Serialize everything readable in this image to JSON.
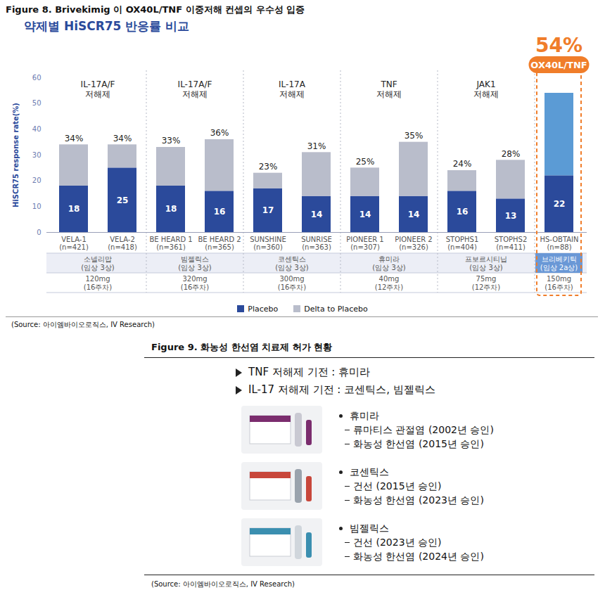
{
  "chart_data": {
    "type": "bar",
    "stacked": true,
    "title": "Figure 8. Brivekimig 이 OX40L/TNF 이중저해 컨셉의 우수성 입증",
    "subtitle": "약제별 HiSCR75 반응률 비교",
    "y_label": "HiSCR75 response rate(%)",
    "categories": [
      "VELA-1",
      "VELA-2",
      "BE HEARD 1",
      "BE HEARD 2",
      "SUNSHINE",
      "SUNRISE",
      "PIONEER 1",
      "PIONEER 2",
      "STOPHS1",
      "STOPHS2",
      "HS-OBTAIN"
    ],
    "sample_sizes": [
      "(n=421)",
      "(n=418)",
      "(n=361)",
      "(n=365)",
      "(n=360)",
      "(n=363)",
      "(n=307)",
      "(n=326)",
      "(n=404)",
      "(n=411)",
      "(n=88)"
    ],
    "ylim": [
      0,
      60
    ],
    "yticks": [
      0,
      10,
      20,
      30,
      40,
      50,
      60
    ],
    "series": [
      {
        "name": "Placebo",
        "color": "#2b4a9b",
        "data_labels": true,
        "values": [
          18,
          25,
          18,
          16,
          17,
          14,
          14,
          14,
          16,
          13,
          22
        ]
      },
      {
        "name": "Delta to Placebo",
        "color": "#b9bdcb",
        "colors": [
          "#b9bdcb",
          "#b9bdcb",
          "#b9bdcb",
          "#b9bdcb",
          "#b9bdcb",
          "#b9bdcb",
          "#b9bdcb",
          "#b9bdcb",
          "#b9bdcb",
          "#b9bdcb",
          "#5b9bd5"
        ],
        "values": [
          16,
          9,
          15,
          20,
          6,
          17,
          11,
          21,
          8,
          15,
          32
        ]
      }
    ],
    "totals": {
      "values": [
        34,
        34,
        33,
        36,
        23,
        31,
        25,
        35,
        24,
        28,
        54
      ],
      "value_labels": [
        "34%",
        "34%",
        "33%",
        "36%",
        "23%",
        "31%",
        "25%",
        "35%",
        "24%",
        "28%",
        "54%"
      ]
    },
    "groups": [
      {
        "label": "IL-17A/F 저해제",
        "categories": [
          "VELA-1",
          "VELA-2"
        ],
        "drug": "소넬리맙",
        "phase": "(임상 3상)",
        "dose": "120mg",
        "week": "(16주차)"
      },
      {
        "label": "IL-17A/F 저해제",
        "categories": [
          "BE HEARD 1",
          "BE HEARD 2"
        ],
        "drug": "빔젤릭스",
        "phase": "(임상 3상)",
        "dose": "320mg",
        "week": "(16주차)"
      },
      {
        "label": "IL-17A 저해제",
        "categories": [
          "SUNSHINE",
          "SUNRISE"
        ],
        "drug": "코센틱스",
        "phase": "(임상 3상)",
        "dose": "300mg",
        "week": "(16주차)"
      },
      {
        "label": "TNF 저해제",
        "categories": [
          "PIONEER 1",
          "PIONEER 2"
        ],
        "drug": "휴미라",
        "phase": "(임상 3상)",
        "dose": "40mg",
        "week": "(12주차)"
      },
      {
        "label": "JAK1 저해제",
        "categories": [
          "STOPHS1",
          "STOPHS2"
        ],
        "drug": "프보르시티닙",
        "phase": "(임상 3상)",
        "dose": "75mg",
        "week": "(12주차)"
      },
      {
        "label": "OX40L/TNF",
        "color": "#f07d2a",
        "categories": [
          "HS-OBTAIN"
        ],
        "drug": "브리베키틱",
        "phase": "(임상 2a상)",
        "dose": "150mg",
        "week": "(16주차)"
      }
    ],
    "legend": "bottom",
    "source": "(Source: 아이엠바이오로직스, IV Research)"
  },
  "figure_9": {
    "title": "Figure 9. 화농성 한선염 치료제 허가 현황",
    "bullets": [
      "TNF 저해제 기전 : 휴미라",
      "IL-17 저해제 기전 : 코센틱스, 빔젤릭스"
    ],
    "items": [
      {
        "name": "휴미라",
        "approvals": [
          "류마티스 관절염 (2002년 승인)",
          "화농성 한선염 (2015년 승인)"
        ]
      },
      {
        "name": "코센틱스",
        "approvals": [
          "건선 (2015년 승인)",
          "화농성 한선염 (2023년 승인)"
        ]
      },
      {
        "name": "빔젤릭스",
        "approvals": [
          "건선 (2023년 승인)",
          "화농성 한선염 (2024년 승인)"
        ]
      }
    ],
    "source": "(Source: 아이엠바이오로직스, IV Research)"
  }
}
